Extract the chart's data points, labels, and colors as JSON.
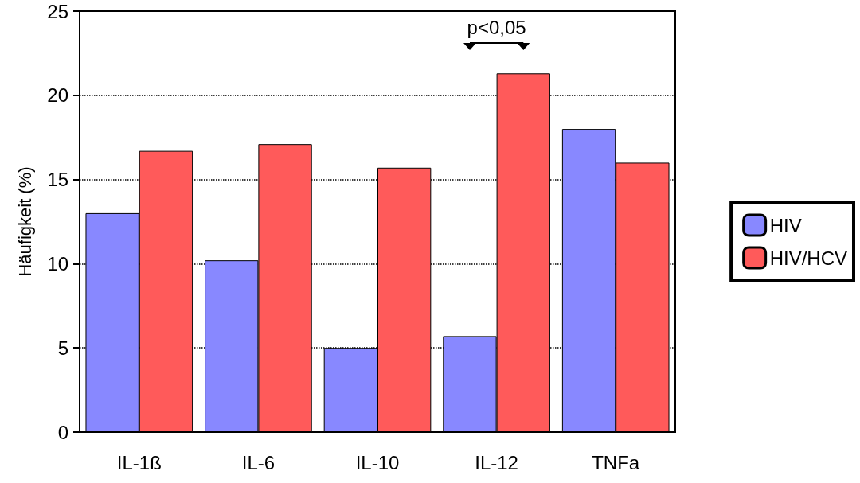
{
  "chart_data": {
    "type": "bar",
    "ylabel": "Häufigkeit (%)",
    "categories": [
      "IL-1ß",
      "IL-6",
      "IL-10",
      "IL-12",
      "TNFa"
    ],
    "series": [
      {
        "name": "HIV",
        "color": "#8888ff",
        "values": [
          13.0,
          10.2,
          5.0,
          5.7,
          18.0
        ]
      },
      {
        "name": "HIV/HCV",
        "color": "#ff5a5a",
        "values": [
          16.7,
          17.1,
          15.7,
          21.3,
          16.0
        ]
      }
    ],
    "ylim": [
      0,
      25
    ],
    "yticks": [
      0,
      5,
      10,
      15,
      20,
      25
    ],
    "grid": "y",
    "legend": "right",
    "annotations": [
      "p<0,05"
    ]
  }
}
